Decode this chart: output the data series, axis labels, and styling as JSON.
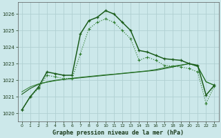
{
  "title": "Graphe pression niveau de la mer (hPa)",
  "bg_color": "#cce8ea",
  "grid_color": "#b0d0d2",
  "line_color_dark": "#1a5c1a",
  "line_color_mid": "#2a7a2a",
  "xlim": [
    -0.5,
    23.5
  ],
  "ylim": [
    1019.5,
    1026.7
  ],
  "yticks": [
    1020,
    1021,
    1022,
    1023,
    1024,
    1025,
    1026
  ],
  "xticks": [
    0,
    1,
    2,
    3,
    4,
    5,
    6,
    7,
    8,
    9,
    10,
    11,
    12,
    13,
    14,
    15,
    16,
    17,
    18,
    19,
    20,
    21,
    22,
    23
  ],
  "series_main": [
    1020.2,
    1021.0,
    1021.6,
    1022.5,
    1022.4,
    1022.3,
    1022.3,
    1024.8,
    1025.6,
    1025.8,
    1026.2,
    1026.0,
    1025.5,
    1025.0,
    1023.8,
    1023.7,
    1023.5,
    1023.3,
    1023.25,
    1023.2,
    1023.0,
    1022.9,
    1021.1,
    1021.7
  ],
  "series_line2": [
    1020.2,
    1021.0,
    1021.5,
    1022.3,
    1022.2,
    1022.1,
    1022.1,
    1023.6,
    1025.1,
    1025.5,
    1025.7,
    1025.5,
    1025.0,
    1024.5,
    1023.2,
    1023.4,
    1023.2,
    1022.9,
    1022.85,
    1022.8,
    1022.7,
    1022.5,
    1020.6,
    1021.65
  ],
  "series_line3": [
    1021.15,
    1021.5,
    1021.75,
    1021.9,
    1022.0,
    1022.05,
    1022.1,
    1022.15,
    1022.2,
    1022.25,
    1022.3,
    1022.35,
    1022.4,
    1022.45,
    1022.5,
    1022.55,
    1022.6,
    1022.7,
    1022.8,
    1022.9,
    1023.0,
    1022.85,
    1021.9,
    1021.7
  ],
  "series_line4": [
    1021.3,
    1021.6,
    1021.78,
    1021.88,
    1021.97,
    1022.05,
    1022.12,
    1022.18,
    1022.23,
    1022.28,
    1022.33,
    1022.37,
    1022.42,
    1022.47,
    1022.52,
    1022.57,
    1022.65,
    1022.75,
    1022.85,
    1022.92,
    1023.0,
    1022.82,
    1021.92,
    1021.68
  ]
}
